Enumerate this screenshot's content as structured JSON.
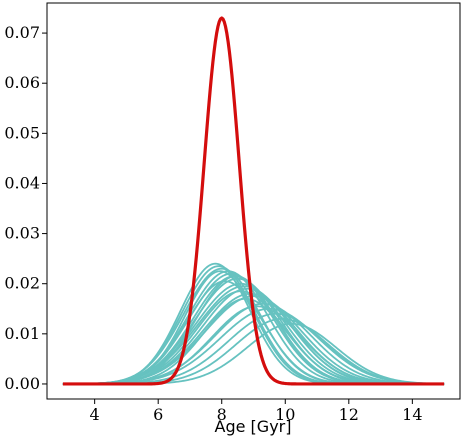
{
  "chart_data": {
    "type": "line",
    "title": "",
    "xlabel": "Age [Gyr]",
    "ylabel": "",
    "xlim": [
      2.5,
      15.5
    ],
    "ylim": [
      -0.003,
      0.076
    ],
    "xticks": [
      4,
      6,
      8,
      10,
      12,
      14
    ],
    "xtick_labels": [
      "4",
      "6",
      "8",
      "10",
      "12",
      "14"
    ],
    "yticks": [
      0.0,
      0.01,
      0.02,
      0.03,
      0.04,
      0.05,
      0.06,
      0.07
    ],
    "ytick_labels": [
      "0.00",
      "0.01",
      "0.02",
      "0.03",
      "0.04",
      "0.05",
      "0.06",
      "0.07"
    ],
    "grid": false,
    "x_range_of_curves": [
      3.0,
      15.0
    ],
    "colors": {
      "highlight": "#d40d0d",
      "samples": "#66c2c0"
    },
    "series": [
      {
        "role": "highlight",
        "shape": "gaussian",
        "mean": 8.0,
        "sd": 0.55,
        "peak": 0.073
      },
      {
        "role": "sample",
        "shape": "gaussian",
        "mean": 7.8,
        "sd": 1.1,
        "peak": 0.024
      },
      {
        "role": "sample",
        "shape": "gaussian",
        "mean": 7.9,
        "sd": 1.15,
        "peak": 0.0235
      },
      {
        "role": "sample",
        "shape": "gaussian",
        "mean": 8.0,
        "sd": 1.2,
        "peak": 0.023
      },
      {
        "role": "sample",
        "shape": "gaussian",
        "mean": 8.2,
        "sd": 1.25,
        "peak": 0.0225
      },
      {
        "role": "sample",
        "shape": "gaussian",
        "mean": 8.4,
        "sd": 1.3,
        "peak": 0.0215
      },
      {
        "role": "sample",
        "shape": "gaussian",
        "mean": 8.5,
        "sd": 1.35,
        "peak": 0.021
      },
      {
        "role": "sample",
        "shape": "gaussian",
        "mean": 8.6,
        "sd": 1.4,
        "peak": 0.02
      },
      {
        "role": "sample",
        "shape": "gaussian",
        "mean": 8.7,
        "sd": 1.45,
        "peak": 0.0195
      },
      {
        "role": "sample",
        "shape": "gaussian",
        "mean": 8.8,
        "sd": 1.4,
        "peak": 0.019
      },
      {
        "role": "sample",
        "shape": "gaussian",
        "mean": 8.9,
        "sd": 1.45,
        "peak": 0.018
      },
      {
        "role": "sample",
        "shape": "gaussian",
        "mean": 9.0,
        "sd": 1.5,
        "peak": 0.0175
      },
      {
        "role": "sample",
        "shape": "gaussian",
        "mean": 8.3,
        "sd": 1.3,
        "peak": 0.022
      },
      {
        "role": "sample",
        "shape": "gaussian",
        "mean": 8.1,
        "sd": 1.2,
        "peak": 0.0205
      },
      {
        "role": "sample",
        "shape": "gaussian",
        "mean": 8.6,
        "sd": 1.35,
        "peak": 0.0185
      },
      {
        "role": "sample",
        "shape": "gaussian",
        "mean": 9.3,
        "sd": 1.5,
        "peak": 0.016
      },
      {
        "role": "sample",
        "shape": "gaussian",
        "mean": 9.5,
        "sd": 1.55,
        "peak": 0.015
      },
      {
        "role": "sample",
        "shape": "gaussian",
        "mean": 9.7,
        "sd": 1.5,
        "peak": 0.014
      },
      {
        "role": "sample",
        "shape": "gaussian",
        "mean": 9.9,
        "sd": 1.45,
        "peak": 0.013
      },
      {
        "role": "sample",
        "shape": "gaussian",
        "mean": 10.2,
        "sd": 1.4,
        "peak": 0.012
      },
      {
        "role": "sample",
        "shape": "gaussian",
        "mean": 7.95,
        "sd": 1.1,
        "peak": 0.0225
      },
      {
        "role": "sample",
        "shape": "gaussian",
        "mean": 8.45,
        "sd": 1.25,
        "peak": 0.0215
      },
      {
        "role": "sample",
        "shape": "gaussian",
        "mean": 8.75,
        "sd": 1.3,
        "peak": 0.017
      },
      {
        "role": "sample",
        "shape": "gaussian",
        "mean": 9.1,
        "sd": 1.4,
        "peak": 0.0155
      }
    ]
  }
}
